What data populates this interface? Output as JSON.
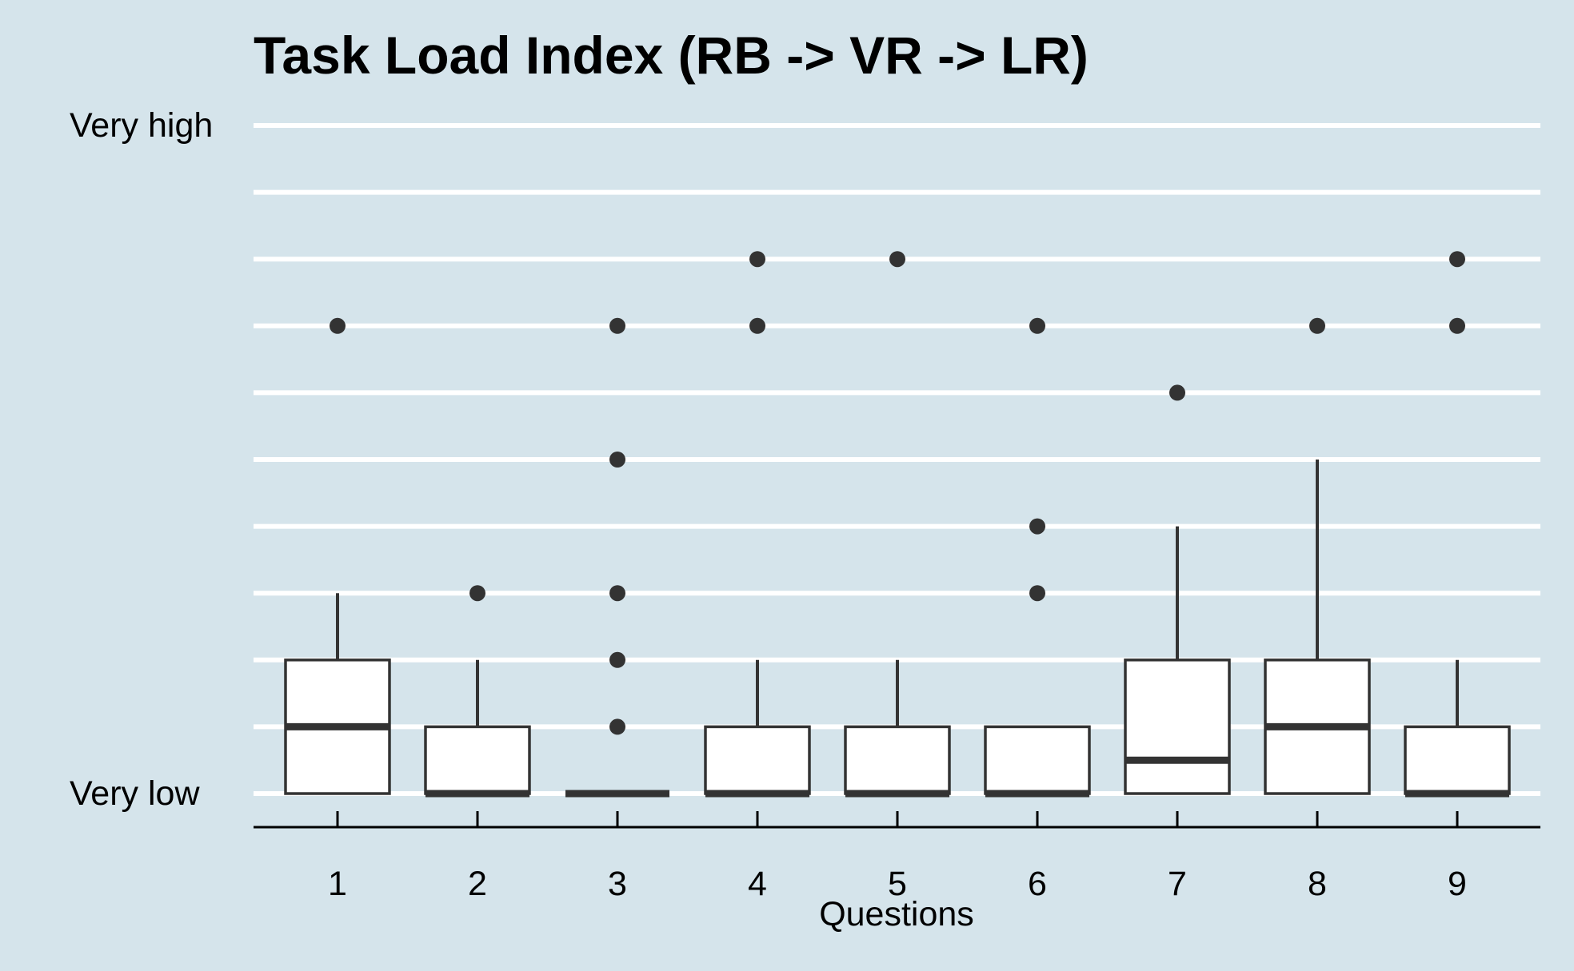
{
  "colors": {
    "background": "#d5e4eb",
    "gridline": "#ffffff",
    "box_fill": "#ffffff",
    "box_stroke": "#333333",
    "axis_line": "#000000",
    "outlier": "#333333"
  },
  "chart_data": {
    "type": "boxplot",
    "title": "Task Load Index (RB -> VR -> LR)",
    "xlabel": "Questions",
    "ylabel": "",
    "categories": [
      "1",
      "2",
      "3",
      "4",
      "5",
      "6",
      "7",
      "8",
      "9"
    ],
    "ylim": [
      1,
      11
    ],
    "y_gridlines": [
      1,
      2,
      3,
      4,
      5,
      6,
      7,
      8,
      9,
      10,
      11
    ],
    "y_tick_labels": [
      {
        "value": 11,
        "label": "Very high"
      },
      {
        "value": 1,
        "label": "Very low"
      }
    ],
    "grid": "horizontal",
    "boxes": [
      {
        "category": "1",
        "whisker_low": 1,
        "q1": 1,
        "median": 2,
        "q3": 3,
        "whisker_high": 4,
        "outliers": [
          8
        ]
      },
      {
        "category": "2",
        "whisker_low": 1,
        "q1": 1,
        "median": 1,
        "q3": 2,
        "whisker_high": 3,
        "outliers": [
          4
        ]
      },
      {
        "category": "3",
        "whisker_low": 1,
        "q1": 1,
        "median": 1,
        "q3": 1,
        "whisker_high": 1,
        "outliers": [
          2,
          3,
          4,
          6,
          8
        ]
      },
      {
        "category": "4",
        "whisker_low": 1,
        "q1": 1,
        "median": 1,
        "q3": 2,
        "whisker_high": 3,
        "outliers": [
          8,
          9
        ]
      },
      {
        "category": "5",
        "whisker_low": 1,
        "q1": 1,
        "median": 1,
        "q3": 2,
        "whisker_high": 3,
        "outliers": [
          9
        ]
      },
      {
        "category": "6",
        "whisker_low": 1,
        "q1": 1,
        "median": 1,
        "q3": 2,
        "whisker_high": 2,
        "outliers": [
          4,
          5,
          8
        ]
      },
      {
        "category": "7",
        "whisker_low": 1,
        "q1": 1,
        "median": 1.5,
        "q3": 3,
        "whisker_high": 5,
        "outliers": [
          7
        ]
      },
      {
        "category": "8",
        "whisker_low": 1,
        "q1": 1,
        "median": 2,
        "q3": 3,
        "whisker_high": 6,
        "outliers": [
          8
        ]
      },
      {
        "category": "9",
        "whisker_low": 1,
        "q1": 1,
        "median": 1,
        "q3": 2,
        "whisker_high": 3,
        "outliers": [
          8,
          9
        ]
      }
    ]
  }
}
